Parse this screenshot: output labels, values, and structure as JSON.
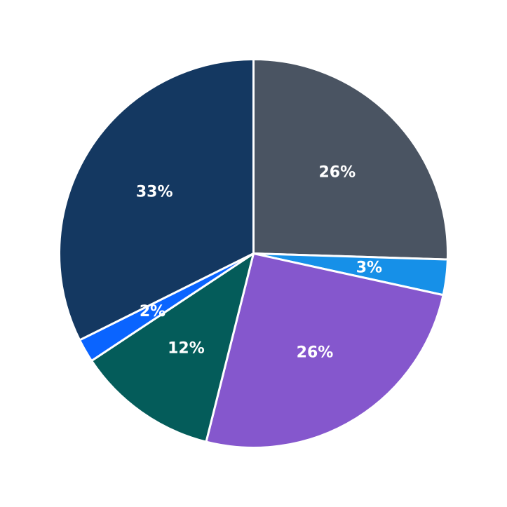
{
  "chart_data": {
    "type": "pie",
    "title": "",
    "start_angle_deg": 90,
    "direction": "clockwise",
    "slices": [
      {
        "value": 26,
        "label": "26%",
        "color": "#4a5462"
      },
      {
        "value": 3,
        "label": "3%",
        "color": "#1690e8"
      },
      {
        "value": 26,
        "label": "26%",
        "color": "#8557cd"
      },
      {
        "value": 12,
        "label": "12%",
        "color": "#045c5a"
      },
      {
        "value": 2,
        "label": "2%",
        "color": "#0a64ff"
      },
      {
        "value": 33,
        "label": "33%",
        "color": "#143861"
      }
    ],
    "legend": "none"
  }
}
